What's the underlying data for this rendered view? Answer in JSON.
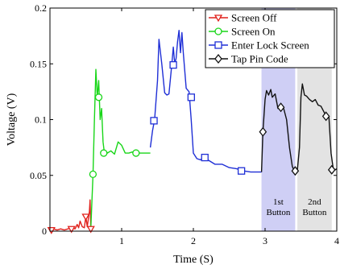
{
  "chart_data": {
    "type": "line",
    "xlabel": "Time (S)",
    "ylabel": "Voltage (V)",
    "xlim": [
      0,
      4
    ],
    "ylim": [
      0,
      0.2
    ],
    "xticks": [
      1,
      2,
      3,
      4
    ],
    "yticks": [
      0,
      0.05,
      0.1,
      0.15,
      0.2
    ],
    "xtick_labels": [
      "1",
      "2",
      "3",
      "4"
    ],
    "ytick_labels": [
      "0",
      "0.05",
      "0.1",
      "0.15",
      "0.2"
    ],
    "grid": false,
    "legend_position": "top-right",
    "bands": [
      {
        "x0": 2.95,
        "x1": 3.42,
        "color": "#cfcff5",
        "label_lines": [
          "1st",
          "Button"
        ]
      },
      {
        "x0": 3.45,
        "x1": 3.93,
        "color": "#e3e3e3",
        "label_lines": [
          "2nd",
          "Button"
        ]
      }
    ],
    "series": [
      {
        "name": "Screen Off",
        "color": "#e0201b",
        "marker": "triangle-down",
        "x": [
          0.0,
          0.05,
          0.1,
          0.15,
          0.2,
          0.25,
          0.3,
          0.35,
          0.38,
          0.4,
          0.42,
          0.45,
          0.48,
          0.5,
          0.52,
          0.55,
          0.56,
          0.57
        ],
        "y": [
          0.001,
          0.002,
          0.001,
          0.002,
          0.001,
          0.002,
          0.003,
          0.002,
          0.006,
          0.003,
          0.009,
          0.004,
          0.003,
          0.013,
          0.004,
          0.018,
          0.028,
          0.002
        ],
        "marker_points": [
          [
            0.02,
            0.001
          ],
          [
            0.3,
            0.002
          ],
          [
            0.5,
            0.013
          ],
          [
            0.57,
            0.002
          ]
        ]
      },
      {
        "name": "Screen On",
        "color": "#19d619",
        "marker": "circle",
        "x": [
          0.57,
          0.6,
          0.62,
          0.64,
          0.66,
          0.68,
          0.7,
          0.72,
          0.74,
          0.76,
          0.78,
          0.8,
          0.85,
          0.9,
          0.95,
          1.0,
          1.05,
          1.1,
          1.15,
          1.2,
          1.25,
          1.3,
          1.35,
          1.4
        ],
        "y": [
          0.002,
          0.05,
          0.1,
          0.145,
          0.12,
          0.135,
          0.1,
          0.11,
          0.08,
          0.07,
          0.072,
          0.07,
          0.072,
          0.069,
          0.08,
          0.077,
          0.07,
          0.07,
          0.071,
          0.07,
          0.07,
          0.07,
          0.07,
          0.07
        ],
        "marker_points": [
          [
            0.6,
            0.051
          ],
          [
            0.68,
            0.12
          ],
          [
            0.75,
            0.07
          ],
          [
            1.2,
            0.07
          ]
        ]
      },
      {
        "name": "Enter Lock Screen",
        "color": "#1f2fd6",
        "marker": "square",
        "x": [
          1.4,
          1.43,
          1.46,
          1.5,
          1.52,
          1.56,
          1.6,
          1.63,
          1.66,
          1.7,
          1.72,
          1.74,
          1.76,
          1.78,
          1.8,
          1.82,
          1.84,
          1.86,
          1.9,
          1.94,
          1.97,
          2.0,
          2.05,
          2.1,
          2.15,
          2.2,
          2.3,
          2.4,
          2.5,
          2.6,
          2.7,
          2.8,
          2.9,
          2.95
        ],
        "y": [
          0.075,
          0.09,
          0.1,
          0.135,
          0.172,
          0.15,
          0.124,
          0.122,
          0.123,
          0.15,
          0.165,
          0.15,
          0.155,
          0.17,
          0.18,
          0.16,
          0.178,
          0.16,
          0.128,
          0.125,
          0.1,
          0.07,
          0.065,
          0.064,
          0.066,
          0.064,
          0.06,
          0.06,
          0.057,
          0.056,
          0.054,
          0.053,
          0.053,
          0.053
        ],
        "marker_points": [
          [
            1.45,
            0.099
          ],
          [
            1.72,
            0.149
          ],
          [
            1.97,
            0.12
          ],
          [
            2.16,
            0.066
          ],
          [
            2.67,
            0.054
          ]
        ]
      },
      {
        "name": "Tap Pin Code",
        "color": "#111111",
        "marker": "diamond",
        "x": [
          2.95,
          2.97,
          3.0,
          3.02,
          3.05,
          3.08,
          3.1,
          3.14,
          3.18,
          3.22,
          3.26,
          3.3,
          3.34,
          3.38,
          3.4,
          3.42,
          3.45,
          3.48,
          3.5,
          3.52,
          3.55,
          3.58,
          3.62,
          3.66,
          3.7,
          3.74,
          3.78,
          3.82,
          3.86,
          3.89,
          3.92,
          3.95,
          3.98,
          4.0
        ],
        "y": [
          0.053,
          0.089,
          0.118,
          0.126,
          0.122,
          0.127,
          0.12,
          0.123,
          0.11,
          0.112,
          0.11,
          0.1,
          0.075,
          0.058,
          0.055,
          0.054,
          0.055,
          0.075,
          0.12,
          0.132,
          0.122,
          0.121,
          0.118,
          0.116,
          0.118,
          0.113,
          0.112,
          0.107,
          0.102,
          0.103,
          0.07,
          0.056,
          0.055,
          0.056
        ],
        "marker_points": [
          [
            2.97,
            0.089
          ],
          [
            3.22,
            0.111
          ],
          [
            3.42,
            0.054
          ],
          [
            3.85,
            0.103
          ],
          [
            3.93,
            0.055
          ]
        ]
      }
    ]
  }
}
